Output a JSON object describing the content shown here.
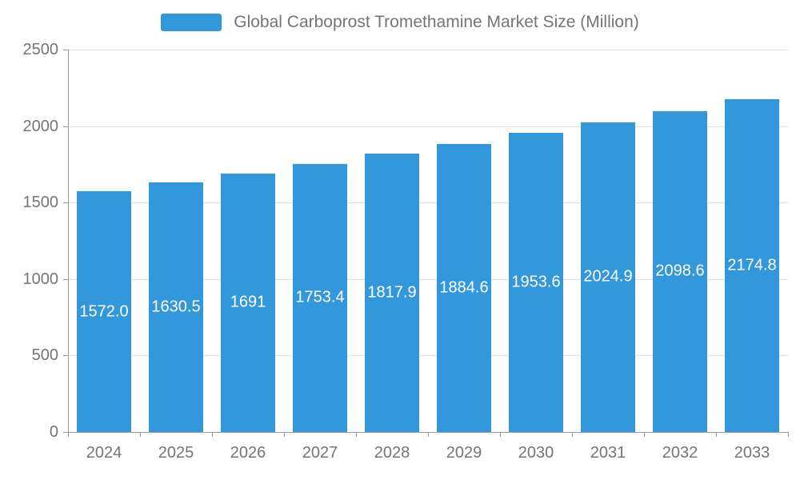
{
  "chart_data": {
    "type": "bar",
    "title": "Global Carboprost Tromethamine Market Size (Million)",
    "categories": [
      "2024",
      "2025",
      "2026",
      "2027",
      "2028",
      "2029",
      "2030",
      "2031",
      "2032",
      "2033"
    ],
    "values": [
      1572.0,
      1630.5,
      1691,
      1753.4,
      1817.9,
      1884.6,
      1953.6,
      2024.9,
      2098.6,
      2174.8
    ],
    "labels": [
      "1572.0",
      "1630.5",
      "1691",
      "1753.4",
      "1817.9",
      "1884.6",
      "1953.6",
      "2024.9",
      "2098.6",
      "2174.8"
    ],
    "xlabel": "",
    "ylabel": "",
    "ylim": [
      0,
      2500
    ],
    "yticks": [
      0,
      500,
      1000,
      1500,
      2000,
      2500
    ],
    "ytick_labels": [
      "0",
      "500",
      "1000",
      "1500",
      "2000",
      "2500"
    ],
    "grid": true,
    "legend_position": "top",
    "bar_color": "#3398DB",
    "label_color": "#ffffff",
    "text_color": "#757575",
    "axis_color": "#999999",
    "grid_color": "#e3e3e3",
    "background_color": "#ffffff"
  }
}
